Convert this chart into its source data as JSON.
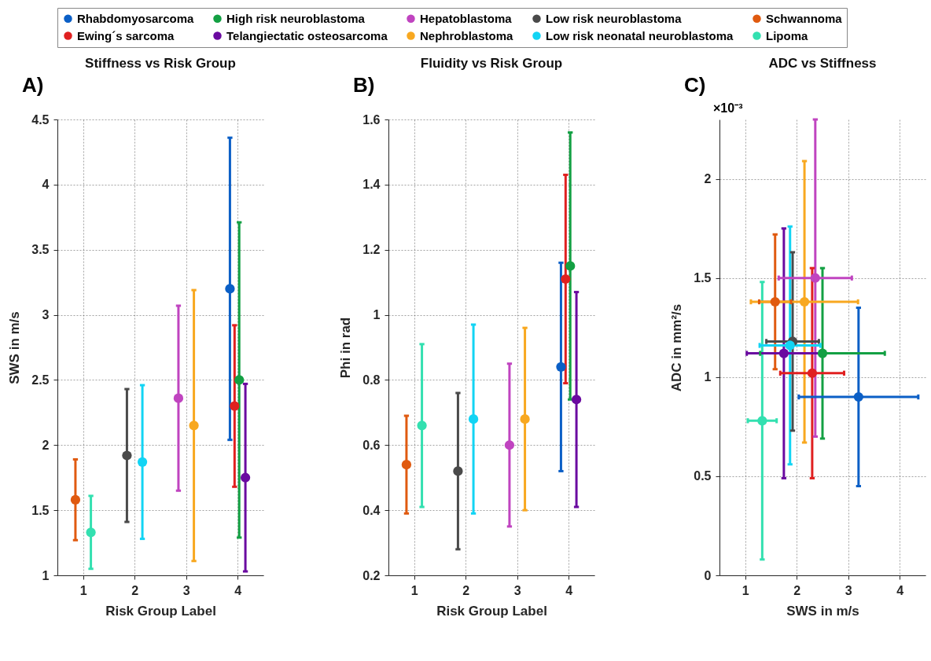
{
  "chart_data": [
    {
      "type": "scatter",
      "title": "Stiffness vs Risk Group",
      "xlabel": "Risk Group Label",
      "ylabel": "SWS in m/s",
      "annotations": [
        "A)"
      ],
      "xlim": [
        0.5,
        4.5
      ],
      "xticks": [
        1,
        2,
        3,
        4
      ],
      "ylim": [
        1,
        4.5
      ],
      "yticks": [
        1,
        1.5,
        2,
        2.5,
        3,
        3.5,
        4,
        4.5
      ],
      "grid": true,
      "legend": "top",
      "marker": "circle",
      "series": [
        {
          "name": "Rhabdomyosarcoma",
          "color": "#0b5fc6",
          "x": [
            3.85
          ],
          "values": [
            3.2
          ],
          "errors": [
            1.16
          ]
        },
        {
          "name": "High risk neuroblastoma",
          "color": "#13a043",
          "x": [
            4.03
          ],
          "values": [
            2.5
          ],
          "errors": [
            1.21
          ]
        },
        {
          "name": "Hepatoblastoma",
          "color": "#c044c0",
          "x": [
            2.85
          ],
          "values": [
            2.36
          ],
          "errors": [
            0.71
          ]
        },
        {
          "name": "Low risk neuroblastoma",
          "color": "#4a4a4a",
          "x": [
            1.85
          ],
          "values": [
            1.92
          ],
          "errors": [
            0.51
          ]
        },
        {
          "name": "Schwannoma",
          "color": "#e05a10",
          "x": [
            0.85
          ],
          "values": [
            1.58
          ],
          "errors": [
            0.31
          ]
        },
        {
          "name": "Ewing´s sarcoma",
          "color": "#e02020",
          "x": [
            3.94
          ],
          "values": [
            2.3
          ],
          "errors": [
            0.62
          ]
        },
        {
          "name": "Telangiectatic osteosarcoma",
          "color": "#6a0aa0",
          "x": [
            4.15
          ],
          "values": [
            1.75
          ],
          "errors": [
            0.72
          ]
        },
        {
          "name": "Nephroblastoma",
          "color": "#f8a820",
          "x": [
            3.15
          ],
          "values": [
            2.15
          ],
          "errors": [
            1.04
          ]
        },
        {
          "name": "Low risk neonatal neuroblastoma",
          "color": "#12d4f4",
          "x": [
            2.15
          ],
          "values": [
            1.87
          ],
          "errors": [
            0.59
          ]
        },
        {
          "name": "Lipoma",
          "color": "#33e0b0",
          "x": [
            1.15
          ],
          "values": [
            1.33
          ],
          "errors": [
            0.28
          ]
        }
      ]
    },
    {
      "type": "scatter",
      "title": "Fluidity vs Risk Group",
      "xlabel": "Risk Group Label",
      "ylabel": "Phi in rad",
      "annotations": [
        "B)"
      ],
      "xlim": [
        0.5,
        4.5
      ],
      "xticks": [
        1,
        2,
        3,
        4
      ],
      "ylim": [
        0.2,
        1.6
      ],
      "yticks": [
        0.2,
        0.4,
        0.6,
        0.8,
        1,
        1.2,
        1.4,
        1.6
      ],
      "grid": true,
      "legend": "top",
      "marker": "circle",
      "series": [
        {
          "name": "Rhabdomyosarcoma",
          "color": "#0b5fc6",
          "x": [
            3.85
          ],
          "values": [
            0.84
          ],
          "errors": [
            0.32
          ]
        },
        {
          "name": "High risk neuroblastoma",
          "color": "#13a043",
          "x": [
            4.03
          ],
          "values": [
            1.15
          ],
          "errors": [
            0.41
          ]
        },
        {
          "name": "Hepatoblastoma",
          "color": "#c044c0",
          "x": [
            2.85
          ],
          "values": [
            0.6
          ],
          "errors": [
            0.25
          ]
        },
        {
          "name": "Low risk neuroblastoma",
          "color": "#4a4a4a",
          "x": [
            1.85
          ],
          "values": [
            0.52
          ],
          "errors": [
            0.24
          ]
        },
        {
          "name": "Schwannoma",
          "color": "#e05a10",
          "x": [
            0.85
          ],
          "values": [
            0.54
          ],
          "errors": [
            0.15
          ]
        },
        {
          "name": "Ewing´s sarcoma",
          "color": "#e02020",
          "x": [
            3.94
          ],
          "values": [
            1.11
          ],
          "errors": [
            0.32
          ]
        },
        {
          "name": "Telangiectatic osteosarcoma",
          "color": "#6a0aa0",
          "x": [
            4.15
          ],
          "values": [
            0.74
          ],
          "errors": [
            0.33
          ]
        },
        {
          "name": "Nephroblastoma",
          "color": "#f8a820",
          "x": [
            3.15
          ],
          "values": [
            0.68
          ],
          "errors": [
            0.28
          ]
        },
        {
          "name": "Low risk neonatal neuroblastoma",
          "color": "#12d4f4",
          "x": [
            2.15
          ],
          "values": [
            0.68
          ],
          "errors": [
            0.29
          ]
        },
        {
          "name": "Lipoma",
          "color": "#33e0b0",
          "x": [
            1.15
          ],
          "values": [
            0.66
          ],
          "errors": [
            0.25
          ]
        }
      ]
    },
    {
      "type": "scatter",
      "title": "ADC vs Stiffness",
      "xlabel": "SWS in m/s",
      "ylabel": "ADC in mm²/s",
      "annotations": [
        "C)",
        "×10⁻³"
      ],
      "xlim": [
        0.5,
        4.5
      ],
      "xticks": [
        1,
        2,
        3,
        4
      ],
      "ylim": [
        0,
        2.3
      ],
      "yticks": [
        0,
        0.5,
        1,
        1.5,
        2
      ],
      "grid": true,
      "legend": "top",
      "marker": "circle",
      "series": [
        {
          "name": "Rhabdomyosarcoma",
          "color": "#0b5fc6",
          "x": [
            3.2
          ],
          "values": [
            0.9
          ],
          "errors": [
            0.45
          ],
          "xerrors": [
            1.16
          ]
        },
        {
          "name": "High risk neuroblastoma",
          "color": "#13a043",
          "x": [
            2.5
          ],
          "values": [
            1.12
          ],
          "errors": [
            0.43
          ],
          "xerrors": [
            1.21
          ]
        },
        {
          "name": "Hepatoblastoma",
          "color": "#c044c0",
          "x": [
            2.36
          ],
          "values": [
            1.5
          ],
          "errors": [
            0.8
          ],
          "xerrors": [
            0.71
          ]
        },
        {
          "name": "Low risk neuroblastoma",
          "color": "#4a4a4a",
          "x": [
            1.92
          ],
          "values": [
            1.18
          ],
          "errors": [
            0.45
          ],
          "xerrors": [
            0.51
          ]
        },
        {
          "name": "Schwannoma",
          "color": "#e05a10",
          "x": [
            1.58
          ],
          "values": [
            1.38
          ],
          "errors": [
            0.34
          ],
          "xerrors": [
            0.31
          ]
        },
        {
          "name": "Ewing´s sarcoma",
          "color": "#e02020",
          "x": [
            2.3
          ],
          "values": [
            1.02
          ],
          "errors": [
            0.53
          ],
          "xerrors": [
            0.62
          ]
        },
        {
          "name": "Telangiectatic osteosarcoma",
          "color": "#6a0aa0",
          "x": [
            1.75
          ],
          "values": [
            1.12
          ],
          "errors": [
            0.63
          ],
          "xerrors": [
            0.72
          ]
        },
        {
          "name": "Nephroblastoma",
          "color": "#f8a820",
          "x": [
            2.15
          ],
          "values": [
            1.38
          ],
          "errors": [
            0.71
          ],
          "xerrors": [
            1.04
          ]
        },
        {
          "name": "Low risk neonatal neuroblastoma",
          "color": "#12d4f4",
          "x": [
            1.87
          ],
          "values": [
            1.16
          ],
          "errors": [
            0.6
          ],
          "xerrors": [
            0.59
          ]
        },
        {
          "name": "Lipoma",
          "color": "#33e0b0",
          "x": [
            1.33
          ],
          "values": [
            0.78
          ],
          "errors": [
            0.7
          ],
          "xerrors": [
            0.28
          ]
        }
      ]
    }
  ]
}
